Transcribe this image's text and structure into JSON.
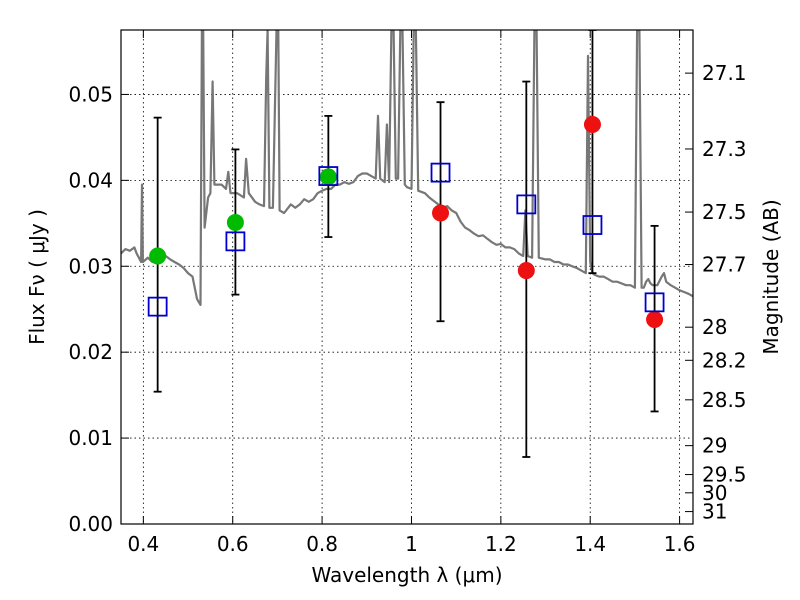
{
  "chart_data": {
    "type": "scatter",
    "xlabel": "Wavelength  λ (μm)",
    "ylabel": "Flux  Fν  ( μJy )",
    "ylabel_right": "Magnitude (AB)",
    "xlim": [
      0.35,
      1.63
    ],
    "ylim": [
      0.0,
      0.0575
    ],
    "grid": true,
    "legend": "none",
    "x_ticks": [
      0.4,
      0.6,
      0.8,
      1.0,
      1.2,
      1.4,
      1.6
    ],
    "x_tick_labels": [
      "0.4",
      "0.6",
      "0.8",
      "1",
      "1.2",
      "1.4",
      "1.6"
    ],
    "y_ticks": [
      0.0,
      0.01,
      0.02,
      0.03,
      0.04,
      0.05
    ],
    "y_tick_labels": [
      "0.00",
      "0.01",
      "0.02",
      "0.03",
      "0.04",
      "0.05"
    ],
    "right_ticks": [
      {
        "mag": 27.1,
        "label": "27.1"
      },
      {
        "mag": 27.3,
        "label": "27.3"
      },
      {
        "mag": 27.5,
        "label": "27.5"
      },
      {
        "mag": 27.7,
        "label": "27.7"
      },
      {
        "mag": 28.0,
        "label": "28"
      },
      {
        "mag": 28.2,
        "label": "28.2"
      },
      {
        "mag": 28.5,
        "label": "28.5"
      },
      {
        "mag": 29.0,
        "label": "29"
      },
      {
        "mag": 29.5,
        "label": "29.5"
      },
      {
        "mag": 30.0,
        "label": "30"
      },
      {
        "mag": 31.0,
        "label": "31"
      }
    ],
    "series": [
      {
        "kind": "spectrum_line",
        "color": "#777777",
        "points": [
          [
            0.35,
            0.0315
          ],
          [
            0.36,
            0.032
          ],
          [
            0.37,
            0.0318
          ],
          [
            0.38,
            0.0322
          ],
          [
            0.385,
            0.0315
          ],
          [
            0.39,
            0.031
          ],
          [
            0.395,
            0.0305
          ],
          [
            0.397,
            0.0395
          ],
          [
            0.399,
            0.0305
          ],
          [
            0.41,
            0.031
          ],
          [
            0.42,
            0.0305
          ],
          [
            0.43,
            0.031
          ],
          [
            0.44,
            0.0305
          ],
          [
            0.45,
            0.0312
          ],
          [
            0.46,
            0.0308
          ],
          [
            0.47,
            0.0305
          ],
          [
            0.48,
            0.0302
          ],
          [
            0.49,
            0.0298
          ],
          [
            0.5,
            0.0292
          ],
          [
            0.51,
            0.0288
          ],
          [
            0.52,
            0.0262
          ],
          [
            0.528,
            0.0255
          ],
          [
            0.531,
            0.0575
          ],
          [
            0.534,
            0.0575
          ],
          [
            0.537,
            0.0345
          ],
          [
            0.545,
            0.038
          ],
          [
            0.55,
            0.0385
          ],
          [
            0.555,
            0.0515
          ],
          [
            0.559,
            0.0395
          ],
          [
            0.565,
            0.0395
          ],
          [
            0.575,
            0.0395
          ],
          [
            0.585,
            0.039
          ],
          [
            0.59,
            0.041
          ],
          [
            0.595,
            0.0385
          ],
          [
            0.61,
            0.0385
          ],
          [
            0.625,
            0.038
          ],
          [
            0.63,
            0.0425
          ],
          [
            0.636,
            0.0385
          ],
          [
            0.65,
            0.0375
          ],
          [
            0.66,
            0.0372
          ],
          [
            0.67,
            0.037
          ],
          [
            0.675,
            0.052
          ],
          [
            0.678,
            0.0575
          ],
          [
            0.682,
            0.0368
          ],
          [
            0.69,
            0.0368
          ],
          [
            0.698,
            0.0575
          ],
          [
            0.702,
            0.0575
          ],
          [
            0.705,
            0.0365
          ],
          [
            0.715,
            0.0362
          ],
          [
            0.73,
            0.0372
          ],
          [
            0.74,
            0.0368
          ],
          [
            0.75,
            0.0372
          ],
          [
            0.76,
            0.0378
          ],
          [
            0.77,
            0.0375
          ],
          [
            0.78,
            0.0378
          ],
          [
            0.79,
            0.0385
          ],
          [
            0.8,
            0.0388
          ],
          [
            0.81,
            0.039
          ],
          [
            0.82,
            0.039
          ],
          [
            0.83,
            0.0395
          ],
          [
            0.84,
            0.0395
          ],
          [
            0.85,
            0.0398
          ],
          [
            0.86,
            0.0396
          ],
          [
            0.87,
            0.0398
          ],
          [
            0.88,
            0.0405
          ],
          [
            0.89,
            0.0408
          ],
          [
            0.9,
            0.0408
          ],
          [
            0.91,
            0.0405
          ],
          [
            0.92,
            0.0402
          ],
          [
            0.925,
            0.0475
          ],
          [
            0.93,
            0.0402
          ],
          [
            0.94,
            0.0398
          ],
          [
            0.945,
            0.0465
          ],
          [
            0.95,
            0.0398
          ],
          [
            0.955,
            0.0575
          ],
          [
            0.96,
            0.0575
          ],
          [
            0.965,
            0.0402
          ],
          [
            0.97,
            0.0402
          ],
          [
            0.975,
            0.0575
          ],
          [
            0.98,
            0.0575
          ],
          [
            0.985,
            0.0395
          ],
          [
            0.99,
            0.0392
          ],
          [
            1.0,
            0.039
          ],
          [
            1.005,
            0.0575
          ],
          [
            1.01,
            0.0575
          ],
          [
            1.015,
            0.0388
          ],
          [
            1.03,
            0.0385
          ],
          [
            1.04,
            0.038
          ],
          [
            1.05,
            0.0376
          ],
          [
            1.06,
            0.0372
          ],
          [
            1.07,
            0.0368
          ],
          [
            1.08,
            0.037
          ],
          [
            1.09,
            0.0365
          ],
          [
            1.1,
            0.0362
          ],
          [
            1.11,
            0.0352
          ],
          [
            1.12,
            0.0345
          ],
          [
            1.13,
            0.0342
          ],
          [
            1.14,
            0.0338
          ],
          [
            1.15,
            0.0335
          ],
          [
            1.16,
            0.0336
          ],
          [
            1.17,
            0.0332
          ],
          [
            1.18,
            0.0328
          ],
          [
            1.19,
            0.0325
          ],
          [
            1.2,
            0.0326
          ],
          [
            1.21,
            0.0322
          ],
          [
            1.22,
            0.0322
          ],
          [
            1.23,
            0.032
          ],
          [
            1.24,
            0.0315
          ],
          [
            1.25,
            0.0312
          ],
          [
            1.255,
            0.0365
          ],
          [
            1.26,
            0.0312
          ],
          [
            1.27,
            0.031
          ],
          [
            1.275,
            0.0575
          ],
          [
            1.28,
            0.0575
          ],
          [
            1.285,
            0.031
          ],
          [
            1.3,
            0.0308
          ],
          [
            1.31,
            0.0308
          ],
          [
            1.32,
            0.0305
          ],
          [
            1.33,
            0.0305
          ],
          [
            1.34,
            0.0302
          ],
          [
            1.35,
            0.0302
          ],
          [
            1.36,
            0.03
          ],
          [
            1.37,
            0.0298
          ],
          [
            1.38,
            0.0295
          ],
          [
            1.39,
            0.0292
          ],
          [
            1.395,
            0.0545
          ],
          [
            1.4,
            0.0305
          ],
          [
            1.405,
            0.0292
          ],
          [
            1.41,
            0.029
          ],
          [
            1.42,
            0.0288
          ],
          [
            1.43,
            0.0288
          ],
          [
            1.44,
            0.0285
          ],
          [
            1.45,
            0.0282
          ],
          [
            1.46,
            0.0282
          ],
          [
            1.47,
            0.028
          ],
          [
            1.48,
            0.0278
          ],
          [
            1.49,
            0.0278
          ],
          [
            1.5,
            0.0275
          ],
          [
            1.505,
            0.0575
          ],
          [
            1.51,
            0.0575
          ],
          [
            1.515,
            0.0275
          ],
          [
            1.52,
            0.0275
          ],
          [
            1.525,
            0.0282
          ],
          [
            1.53,
            0.0285
          ],
          [
            1.535,
            0.028
          ],
          [
            1.54,
            0.0278
          ],
          [
            1.55,
            0.0278
          ],
          [
            1.56,
            0.0288
          ],
          [
            1.565,
            0.0292
          ],
          [
            1.57,
            0.0282
          ],
          [
            1.58,
            0.0278
          ],
          [
            1.59,
            0.0275
          ],
          [
            1.6,
            0.0272
          ],
          [
            1.61,
            0.027
          ],
          [
            1.62,
            0.0268
          ],
          [
            1.63,
            0.0265
          ]
        ]
      },
      {
        "kind": "observed_green",
        "color": "#00bb00",
        "points": [
          {
            "x": 0.432,
            "y": 0.0312
          },
          {
            "x": 0.606,
            "y": 0.0351
          },
          {
            "x": 0.814,
            "y": 0.0404
          }
        ]
      },
      {
        "kind": "observed_red",
        "color": "#ee1111",
        "points": [
          {
            "x": 1.065,
            "y": 0.0362
          },
          {
            "x": 1.257,
            "y": 0.0295
          },
          {
            "x": 1.405,
            "y": 0.0465
          },
          {
            "x": 1.544,
            "y": 0.0238
          }
        ]
      },
      {
        "kind": "model_squares",
        "color": "#0000cc",
        "points": [
          {
            "x": 0.432,
            "y": 0.0253
          },
          {
            "x": 0.606,
            "y": 0.0329
          },
          {
            "x": 0.814,
            "y": 0.0405
          },
          {
            "x": 1.065,
            "y": 0.0409
          },
          {
            "x": 1.257,
            "y": 0.0372
          },
          {
            "x": 1.405,
            "y": 0.0348
          },
          {
            "x": 1.544,
            "y": 0.0258
          }
        ]
      },
      {
        "kind": "errorbars",
        "color": "#000000",
        "points": [
          {
            "x": 0.432,
            "low": 0.0154,
            "high": 0.0473
          },
          {
            "x": 0.606,
            "low": 0.0267,
            "high": 0.0436
          },
          {
            "x": 0.814,
            "low": 0.0334,
            "high": 0.0475
          },
          {
            "x": 1.065,
            "low": 0.0236,
            "high": 0.0491
          },
          {
            "x": 1.257,
            "low": 0.0078,
            "high": 0.0515
          },
          {
            "x": 1.405,
            "low": 0.0292,
            "high": 0.0575
          },
          {
            "x": 1.544,
            "low": 0.0131,
            "high": 0.0347
          }
        ]
      }
    ]
  }
}
